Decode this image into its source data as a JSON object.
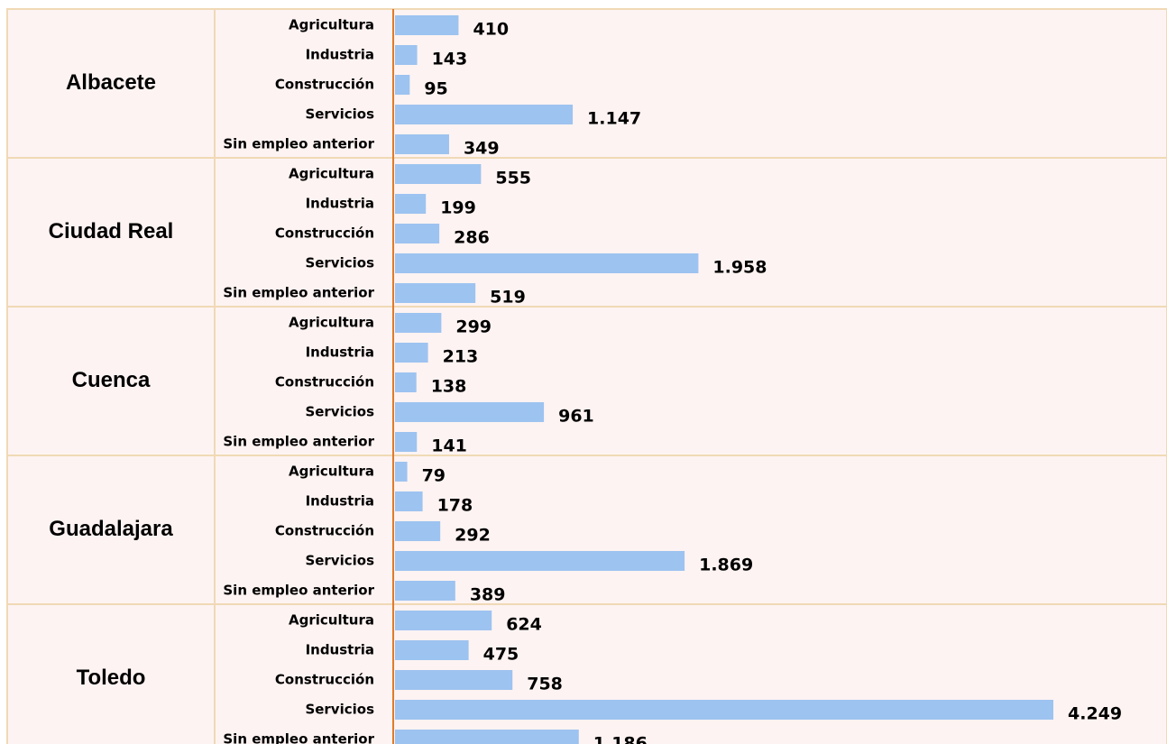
{
  "chart_data": {
    "type": "bar",
    "orientation": "horizontal",
    "color": "#9dc3f0",
    "groups": [
      {
        "name": "Albacete",
        "categories": [
          "Agricultura",
          "Industria",
          "Construcción",
          "Servicios",
          "Sin empleo anterior"
        ],
        "values": [
          410,
          143,
          95,
          1147,
          349
        ],
        "value_labels": [
          "410",
          "143",
          "95",
          "1.147",
          "349"
        ]
      },
      {
        "name": "Ciudad Real",
        "categories": [
          "Agricultura",
          "Industria",
          "Construcción",
          "Servicios",
          "Sin empleo anterior"
        ],
        "values": [
          555,
          199,
          286,
          1958,
          519
        ],
        "value_labels": [
          "555",
          "199",
          "286",
          "1.958",
          "519"
        ]
      },
      {
        "name": "Cuenca",
        "categories": [
          "Agricultura",
          "Industria",
          "Construcción",
          "Servicios",
          "Sin empleo anterior"
        ],
        "values": [
          299,
          213,
          138,
          961,
          141
        ],
        "value_labels": [
          "299",
          "213",
          "138",
          "961",
          "141"
        ]
      },
      {
        "name": "Guadalajara",
        "categories": [
          "Agricultura",
          "Industria",
          "Construcción",
          "Servicios",
          "Sin empleo anterior"
        ],
        "values": [
          79,
          178,
          292,
          1869,
          389
        ],
        "value_labels": [
          "79",
          "178",
          "292",
          "1.869",
          "389"
        ]
      },
      {
        "name": "Toledo",
        "categories": [
          "Agricultura",
          "Industria",
          "Construcción",
          "Servicios",
          "Sin empleo anterior"
        ],
        "values": [
          624,
          475,
          758,
          4249,
          1186
        ],
        "value_labels": [
          "624",
          "475",
          "758",
          "4.249",
          "1.186"
        ]
      }
    ]
  }
}
